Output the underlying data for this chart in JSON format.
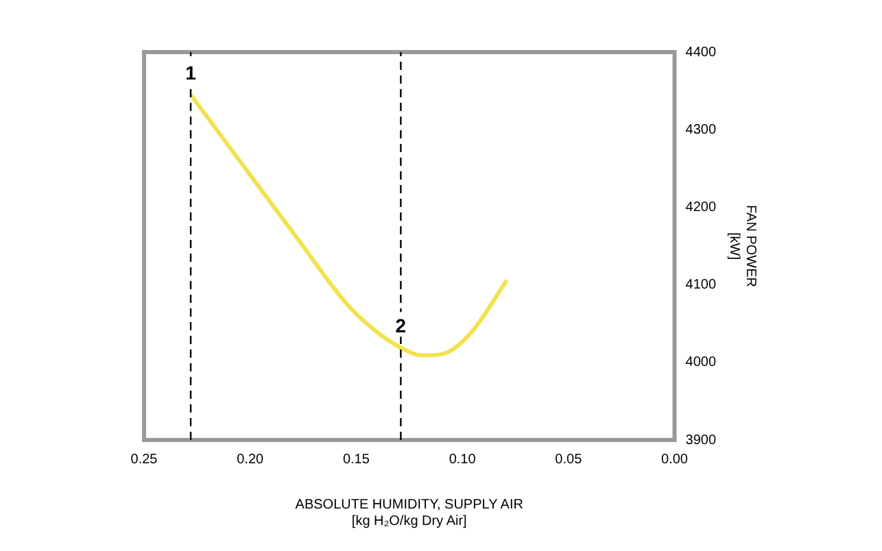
{
  "chart_data": {
    "type": "line",
    "xlabel": "ABSOLUTE HUMIDITY, SUPPLY AIR\n[kg H₂O/kg Dry Air]",
    "ylabel": "FAN POWER\n[kW]",
    "series": [
      {
        "color": "#f2e24e",
        "x": [
          0.228,
          0.199,
          0.177,
          0.155,
          0.142,
          0.129,
          0.119,
          0.109,
          0.096,
          0.079
        ],
        "values": [
          4345,
          4238,
          4157,
          4077,
          4043,
          4019,
          4009,
          4011,
          4038,
          4106
        ]
      }
    ],
    "xlim": [
      0.25,
      0
    ],
    "xticks": [
      {
        "value": 0.25,
        "label": "0.25"
      },
      {
        "value": 0.2,
        "label": "0.20"
      },
      {
        "value": 0.15,
        "label": "0.15"
      },
      {
        "value": 0.1,
        "label": "0.10"
      },
      {
        "value": 0.05,
        "label": "0.05"
      },
      {
        "value": 0,
        "label": "0.00"
      }
    ],
    "ylim": [
      3900,
      4400
    ],
    "yticks": [
      3900,
      4000,
      4100,
      4200,
      4300,
      4400
    ],
    "ref_lines": [
      {
        "axis": "x",
        "value": 0.228,
        "line_style": "dashed"
      },
      {
        "axis": "x",
        "value": 0.129,
        "line_style": "dashed"
      }
    ],
    "annotations": [
      {
        "text": "1",
        "x": 0.228,
        "y": 4345
      },
      {
        "text": "2",
        "x": 0.129,
        "y": 4019
      }
    ],
    "grid": false,
    "legend": false,
    "marker": "none",
    "line_style": "solid"
  }
}
